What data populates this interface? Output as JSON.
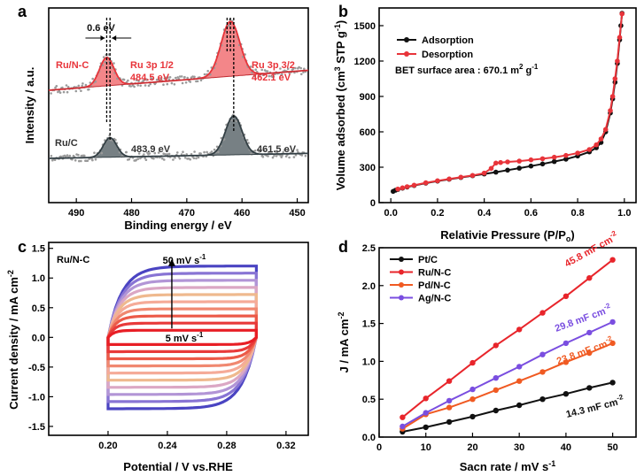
{
  "chart_data": [
    {
      "panel": "a",
      "type": "line",
      "xlabel": "Binding energy / eV",
      "ylabel": "Intensity / a.u.",
      "xlim": [
        495,
        448
      ],
      "xticks": [
        490,
        480,
        470,
        460,
        450
      ],
      "series": [
        {
          "name": "Ru/N-C",
          "color": "#e8343a",
          "peaks": [
            {
              "center": 484.5,
              "label": "Ru 3p 1/2",
              "value": "484.5 eV"
            },
            {
              "center": 462.1,
              "label": "Ru 3p 3/2",
              "value": "462.1 eV"
            }
          ]
        },
        {
          "name": "Ru/C",
          "color": "#555f63",
          "peaks": [
            {
              "center": 483.9,
              "value": "483.9 eV"
            },
            {
              "center": 461.5,
              "value": "461.5 eV"
            }
          ]
        }
      ],
      "annotations": {
        "shift": "0.6 eV",
        "ru3p12": "Ru 3p 1/2",
        "ru3p12_val": "484.5 eV",
        "ru3p32": "Ru 3p 3/2",
        "ru3p32_val": "462.1 eV",
        "ruc_p1": "483.9 eV",
        "ruc_p2": "461.5 eV",
        "rnc_label": "Ru/N-C",
        "rc_label": "Ru/C"
      }
    },
    {
      "panel": "b",
      "type": "line",
      "xlabel": "Relativie Pressure (P/P",
      "xlabel_sub": "o",
      "xlabel_end": ")",
      "ylabel": "Volume adsorbed (cm",
      "ylabel_sup": "3",
      "ylabel_mid": " STP g",
      "ylabel_sup2": "-1",
      "ylabel_end": ")",
      "xlim": [
        -0.05,
        1.05
      ],
      "ylim": [
        0,
        1650
      ],
      "xticks": [
        0.0,
        0.2,
        0.4,
        0.6,
        0.8,
        1.0
      ],
      "xtick_labels": [
        "0.0",
        "0.2",
        "0.4",
        "0.6",
        "0.8",
        "1.0"
      ],
      "yticks": [
        0,
        300,
        600,
        900,
        1200,
        1500
      ],
      "legend": [
        "Adsorption",
        "Desorption"
      ],
      "bet_text": "BET surface area : 670.1 m",
      "bet_sup": "2",
      "bet_end": " g",
      "bet_sup2": "-1",
      "series": [
        {
          "name": "Adsorption",
          "color": "#111111",
          "x": [
            0.01,
            0.02,
            0.03,
            0.05,
            0.07,
            0.1,
            0.15,
            0.2,
            0.25,
            0.3,
            0.35,
            0.4,
            0.45,
            0.5,
            0.55,
            0.6,
            0.65,
            0.7,
            0.75,
            0.8,
            0.85,
            0.88,
            0.9,
            0.92,
            0.94,
            0.95,
            0.96,
            0.97,
            0.98,
            0.985,
            0.99
          ],
          "y": [
            95,
            105,
            112,
            122,
            132,
            145,
            165,
            182,
            198,
            213,
            228,
            243,
            258,
            275,
            292,
            310,
            328,
            348,
            368,
            395,
            430,
            465,
            510,
            600,
            760,
            880,
            1020,
            1180,
            1380,
            1500,
            1605
          ]
        },
        {
          "name": "Desorption",
          "color": "#e8343a",
          "x": [
            0.99,
            0.98,
            0.97,
            0.96,
            0.95,
            0.94,
            0.92,
            0.9,
            0.88,
            0.85,
            0.8,
            0.75,
            0.7,
            0.65,
            0.6,
            0.55,
            0.5,
            0.47,
            0.45,
            0.43,
            0.4,
            0.35,
            0.3,
            0.25,
            0.2,
            0.15,
            0.1,
            0.07,
            0.05,
            0.03
          ],
          "y": [
            1600,
            1400,
            1200,
            1050,
            900,
            780,
            620,
            540,
            490,
            450,
            420,
            400,
            385,
            372,
            362,
            352,
            345,
            340,
            335,
            290,
            250,
            230,
            215,
            200,
            185,
            168,
            148,
            135,
            125,
            115
          ]
        }
      ]
    },
    {
      "panel": "c",
      "type": "line",
      "xlabel": "Potential / V vs.RHE",
      "ylabel": "Current density / mA cm",
      "ylabel_sup": "-2",
      "xlim": [
        0.16,
        0.335
      ],
      "ylim": [
        -1.65,
        1.6
      ],
      "xticks": [
        0.2,
        0.24,
        0.28,
        0.32
      ],
      "xtick_labels": [
        "0.20",
        "0.24",
        "0.28",
        "0.32"
      ],
      "yticks": [
        -1.5,
        -1.0,
        -0.5,
        0.0,
        0.5,
        1.0,
        1.5
      ],
      "ytick_labels": [
        "-1.5",
        "-1.0",
        "-0.5",
        "0.0",
        "0.5",
        "1.0",
        "1.5"
      ],
      "sample": "Ru/N-C",
      "scan_high": "50 mV s",
      "scan_low": "5 mV s",
      "scan_sup": "-1",
      "scan_rates_mV_s": [
        5,
        10,
        15,
        20,
        25,
        30,
        35,
        40,
        45,
        50
      ],
      "current_at_scan_mA_cm2": [
        0.12,
        0.24,
        0.36,
        0.48,
        0.6,
        0.72,
        0.84,
        0.96,
        1.08,
        1.2
      ],
      "colors": [
        "#e81e25",
        "#e83a3a",
        "#ec5a48",
        "#f08870",
        "#f5ab98",
        "#efb98e",
        "#dba7c4",
        "#b295d6",
        "#8874d4",
        "#4a44c2"
      ]
    },
    {
      "panel": "d",
      "type": "line",
      "xlabel": "Sacn rate / mV s",
      "xlabel_sup": "-1",
      "ylabel": "J / mA cm",
      "ylabel_sup": "-2",
      "xlim": [
        0,
        55
      ],
      "ylim": [
        0,
        2.5
      ],
      "xticks": [
        0,
        10,
        20,
        30,
        40,
        50
      ],
      "yticks": [
        0.0,
        0.5,
        1.0,
        1.5,
        2.0,
        2.5
      ],
      "ytick_labels": [
        "0.0",
        "0.5",
        "1.0",
        "1.5",
        "2.0",
        "2.5"
      ],
      "x": [
        5,
        10,
        15,
        20,
        25,
        30,
        35,
        40,
        45,
        50
      ],
      "series": [
        {
          "name": "Pt/C",
          "color": "#111111",
          "values": [
            0.07,
            0.13,
            0.2,
            0.27,
            0.35,
            0.42,
            0.5,
            0.57,
            0.65,
            0.72
          ],
          "label": "14.3 mF cm",
          "label_sup": "-2"
        },
        {
          "name": "Ru/N-C",
          "color": "#e8252b",
          "values": [
            0.26,
            0.51,
            0.74,
            0.98,
            1.21,
            1.42,
            1.64,
            1.86,
            2.1,
            2.34
          ],
          "label": "45.8 mF cm",
          "label_sup": "-2"
        },
        {
          "name": "Pd/N-C",
          "color": "#f05a22",
          "values": [
            0.11,
            0.3,
            0.39,
            0.5,
            0.62,
            0.74,
            0.86,
            0.99,
            1.11,
            1.24
          ],
          "label": "23.8 mF cm",
          "label_sup": "-2"
        },
        {
          "name": "Ag/N-C",
          "color": "#7a4ee0",
          "values": [
            0.14,
            0.32,
            0.48,
            0.63,
            0.78,
            0.93,
            1.09,
            1.24,
            1.38,
            1.52
          ],
          "label": "29.8 mF cm",
          "label_sup": "-2"
        }
      ]
    }
  ]
}
